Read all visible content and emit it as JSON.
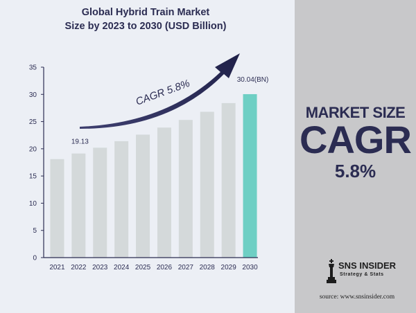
{
  "chart_data": {
    "type": "bar",
    "title_line1": "Global Hybrid Train Market",
    "title_line2": "Size by 2023 to 2030 (USD Billion)",
    "categories": [
      "2021",
      "2022",
      "2023",
      "2024",
      "2025",
      "2026",
      "2027",
      "2028",
      "2029",
      "2030"
    ],
    "values": [
      18.1,
      19.13,
      20.2,
      21.4,
      22.6,
      23.9,
      25.3,
      26.8,
      28.4,
      30.04
    ],
    "ylim": [
      0,
      35
    ],
    "yticks": [
      0,
      5,
      10,
      15,
      20,
      25,
      30,
      35
    ],
    "annotations": {
      "start_value": "19.13",
      "end_value": "30.04(BN)",
      "cagr_arrow": "CAGR 5.8%"
    },
    "colors": {
      "bar": "#d4d9da",
      "highlight": "#6ecfc4",
      "navy": "#2b2c52",
      "axis": "#2b2c52"
    }
  },
  "side_panel": {
    "label": "MARKET SIZE",
    "cagr": "CAGR",
    "value": "5.8%"
  },
  "logo": {
    "name": "SNS INSIDER",
    "tagline": "Strategy & Stats",
    "icon": "chess-king-icon"
  },
  "source": "source: www.snsinsider.com"
}
